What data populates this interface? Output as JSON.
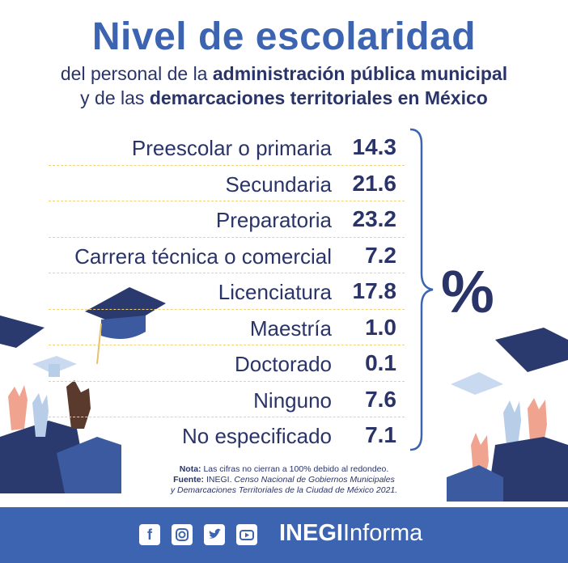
{
  "title": "Nivel de escolaridad",
  "subtitle": {
    "line1_plain": "del personal de la ",
    "line1_bold": "administración pública municipal",
    "line2_plain": "y de las ",
    "line2_bold": "demarcaciones territoriales en México"
  },
  "unit": "%",
  "rows": [
    {
      "label": "Preescolar o primaria",
      "value": "14.3"
    },
    {
      "label": "Secundaria",
      "value": "21.6"
    },
    {
      "label": "Preparatoria",
      "value": "23.2"
    },
    {
      "label": "Carrera técnica o comercial",
      "value": "7.2"
    },
    {
      "label": "Licenciatura",
      "value": "17.8"
    },
    {
      "label": "Maestría",
      "value": "1.0"
    },
    {
      "label": "Doctorado",
      "value": "0.1"
    },
    {
      "label": "Ninguno",
      "value": "7.6"
    },
    {
      "label": "No especificado",
      "value": "7.1"
    }
  ],
  "notes": {
    "nota_label": "Nota:",
    "nota_text": " Las cifras no cierran a 100% debido al redondeo.",
    "fuente_label": "Fuente:",
    "fuente_text": " INEGI. ",
    "fuente_italic_1": "Censo Nacional de Gobiernos Municipales",
    "fuente_italic_2": "y Demarcaciones Territoriales de la Ciudad de México 2021."
  },
  "footer": {
    "brand_bold": "INEGI",
    "brand_regular": "Informa",
    "icons": [
      "facebook-icon",
      "instagram-icon",
      "twitter-icon",
      "youtube-icon"
    ]
  },
  "colors": {
    "title": "#3c64b0",
    "text": "#2a3468",
    "footer_bg": "#3c64b0",
    "dash": "#f1d276"
  }
}
